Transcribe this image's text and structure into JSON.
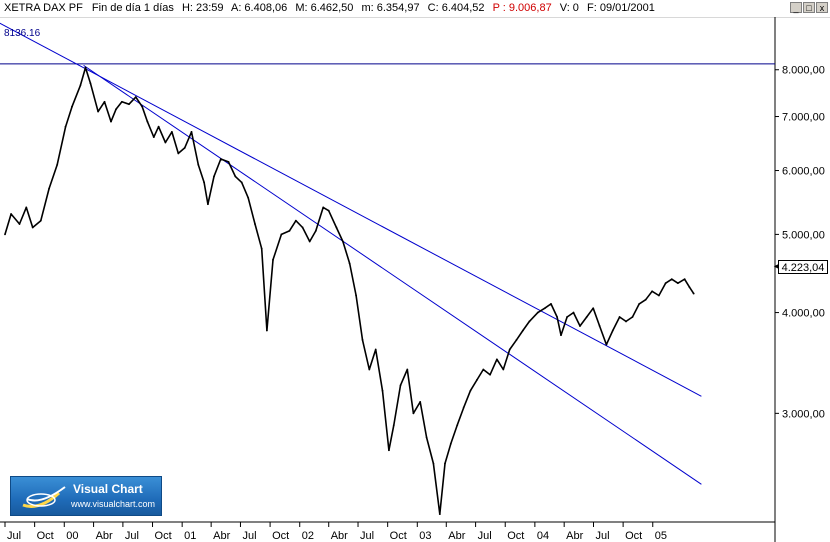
{
  "header": {
    "symbol": "XETRA DAX PF",
    "period": "Fin de día 1 días",
    "hour": "H: 23:59",
    "open": "A: 6.408,06",
    "high": "M: 6.462,50",
    "low": "m: 6.354,97",
    "close": "C: 6.404,52",
    "previous": "P : 9.006,87",
    "volume": "V: 0",
    "date": "F: 09/01/2001"
  },
  "window_controls": [
    "_",
    "□",
    "x"
  ],
  "logo": {
    "name": "Visual Chart",
    "url": "www.visualchart.com"
  },
  "price_tag": "4.223,04",
  "level_line_label": "8136.16",
  "colors": {
    "price": "#000000",
    "trendline": "#0000cd",
    "level_line": "#00008b",
    "background": "#ffffff",
    "header_red": "#d00000"
  },
  "chart_data": {
    "type": "line",
    "title": "XETRA DAX PF",
    "y_scale": "log",
    "ylim": [
      2200,
      9300
    ],
    "y_ticks": [
      "8.000,00",
      "7.000,00",
      "6.000,00",
      "5.000,00",
      "4.000,00",
      "3.000,00"
    ],
    "y_tick_values": [
      8000,
      7000,
      6000,
      5000,
      4000,
      3000
    ],
    "x_range": [
      "1999-07-01",
      "2005-12-31"
    ],
    "x_ticks": [
      {
        "label": "Jul",
        "date": "1999-07-01"
      },
      {
        "label": "Oct",
        "date": "1999-10-01"
      },
      {
        "label": "00",
        "date": "2000-01-01"
      },
      {
        "label": "Abr",
        "date": "2000-04-01"
      },
      {
        "label": "Jul",
        "date": "2000-07-01"
      },
      {
        "label": "Oct",
        "date": "2000-10-01"
      },
      {
        "label": "01",
        "date": "2001-01-01"
      },
      {
        "label": "Abr",
        "date": "2001-04-01"
      },
      {
        "label": "Jul",
        "date": "2001-07-01"
      },
      {
        "label": "Oct",
        "date": "2001-10-01"
      },
      {
        "label": "02",
        "date": "2002-01-01"
      },
      {
        "label": "Abr",
        "date": "2002-04-01"
      },
      {
        "label": "Jul",
        "date": "2002-07-01"
      },
      {
        "label": "Oct",
        "date": "2002-10-01"
      },
      {
        "label": "03",
        "date": "2003-01-01"
      },
      {
        "label": "Abr",
        "date": "2003-04-01"
      },
      {
        "label": "Jul",
        "date": "2003-07-01"
      },
      {
        "label": "Oct",
        "date": "2003-10-01"
      },
      {
        "label": "04",
        "date": "2004-01-01"
      },
      {
        "label": "Abr",
        "date": "2004-04-01"
      },
      {
        "label": "Jul",
        "date": "2004-07-01"
      },
      {
        "label": "Oct",
        "date": "2004-10-01"
      },
      {
        "label": "05",
        "date": "2005-01-01"
      }
    ],
    "series": [
      {
        "values": [
          [
            "1999-07-01",
            5000
          ],
          [
            "1999-07-20",
            5300
          ],
          [
            "1999-08-15",
            5150
          ],
          [
            "1999-09-05",
            5400
          ],
          [
            "1999-09-25",
            5100
          ],
          [
            "1999-10-20",
            5200
          ],
          [
            "1999-11-15",
            5700
          ],
          [
            "1999-12-10",
            6100
          ],
          [
            "2000-01-05",
            6800
          ],
          [
            "2000-01-25",
            7200
          ],
          [
            "2000-02-20",
            7650
          ],
          [
            "2000-03-07",
            8050
          ],
          [
            "2000-03-22",
            7700
          ],
          [
            "2000-04-15",
            7100
          ],
          [
            "2000-05-05",
            7300
          ],
          [
            "2000-05-25",
            6900
          ],
          [
            "2000-06-10",
            7150
          ],
          [
            "2000-06-28",
            7300
          ],
          [
            "2000-07-20",
            7250
          ],
          [
            "2000-08-10",
            7400
          ],
          [
            "2000-08-30",
            7200
          ],
          [
            "2000-09-15",
            6900
          ],
          [
            "2000-10-05",
            6600
          ],
          [
            "2000-10-20",
            6800
          ],
          [
            "2000-11-10",
            6500
          ],
          [
            "2000-11-30",
            6700
          ],
          [
            "2000-12-20",
            6300
          ],
          [
            "2001-01-09",
            6400
          ],
          [
            "2001-01-30",
            6700
          ],
          [
            "2001-02-20",
            6100
          ],
          [
            "2001-03-10",
            5800
          ],
          [
            "2001-03-22",
            5450
          ],
          [
            "2001-04-10",
            5900
          ],
          [
            "2001-05-01",
            6200
          ],
          [
            "2001-05-25",
            6150
          ],
          [
            "2001-06-15",
            5900
          ],
          [
            "2001-07-05",
            5800
          ],
          [
            "2001-07-25",
            5550
          ],
          [
            "2001-08-15",
            5150
          ],
          [
            "2001-09-05",
            4800
          ],
          [
            "2001-09-21",
            3800
          ],
          [
            "2001-10-10",
            4650
          ],
          [
            "2001-11-05",
            5000
          ],
          [
            "2001-11-30",
            5050
          ],
          [
            "2001-12-20",
            5200
          ],
          [
            "2002-01-10",
            5100
          ],
          [
            "2002-02-01",
            4900
          ],
          [
            "2002-02-20",
            5050
          ],
          [
            "2002-03-15",
            5400
          ],
          [
            "2002-04-01",
            5350
          ],
          [
            "2002-04-25",
            5100
          ],
          [
            "2002-05-15",
            4900
          ],
          [
            "2002-06-05",
            4600
          ],
          [
            "2002-06-25",
            4200
          ],
          [
            "2002-07-15",
            3700
          ],
          [
            "2002-08-05",
            3400
          ],
          [
            "2002-08-25",
            3600
          ],
          [
            "2002-09-15",
            3200
          ],
          [
            "2002-10-05",
            2700
          ],
          [
            "2002-10-20",
            2900
          ],
          [
            "2002-11-10",
            3250
          ],
          [
            "2002-12-01",
            3400
          ],
          [
            "2002-12-20",
            3000
          ],
          [
            "2003-01-10",
            3100
          ],
          [
            "2003-01-30",
            2800
          ],
          [
            "2003-02-20",
            2600
          ],
          [
            "2003-03-12",
            2250
          ],
          [
            "2003-03-28",
            2600
          ],
          [
            "2003-04-15",
            2750
          ],
          [
            "2003-05-05",
            2900
          ],
          [
            "2003-05-25",
            3050
          ],
          [
            "2003-06-15",
            3200
          ],
          [
            "2003-07-05",
            3300
          ],
          [
            "2003-07-25",
            3400
          ],
          [
            "2003-08-15",
            3350
          ],
          [
            "2003-09-05",
            3500
          ],
          [
            "2003-09-25",
            3400
          ],
          [
            "2003-10-15",
            3600
          ],
          [
            "2003-11-05",
            3700
          ],
          [
            "2003-11-25",
            3800
          ],
          [
            "2003-12-15",
            3900
          ],
          [
            "2004-01-10",
            4000
          ],
          [
            "2004-02-01",
            4050
          ],
          [
            "2004-02-20",
            4100
          ],
          [
            "2004-03-10",
            3950
          ],
          [
            "2004-03-22",
            3750
          ],
          [
            "2004-04-10",
            3950
          ],
          [
            "2004-04-30",
            4000
          ],
          [
            "2004-05-20",
            3850
          ],
          [
            "2004-06-10",
            3950
          ],
          [
            "2004-06-30",
            4050
          ],
          [
            "2004-07-20",
            3850
          ],
          [
            "2004-08-10",
            3650
          ],
          [
            "2004-08-30",
            3800
          ],
          [
            "2004-09-20",
            3950
          ],
          [
            "2004-10-10",
            3900
          ],
          [
            "2004-10-30",
            3950
          ],
          [
            "2004-11-20",
            4100
          ],
          [
            "2004-12-10",
            4150
          ],
          [
            "2004-12-30",
            4250
          ],
          [
            "2005-01-20",
            4200
          ],
          [
            "2005-02-10",
            4350
          ],
          [
            "2005-03-01",
            4400
          ],
          [
            "2005-03-20",
            4350
          ],
          [
            "2005-04-10",
            4400
          ],
          [
            "2005-04-25",
            4300
          ],
          [
            "2005-05-08",
            4223
          ]
        ]
      }
    ],
    "horizontal_lines": [
      {
        "value": 8136.16
      }
    ],
    "trendlines": [
      {
        "start": [
          "1999-06-01",
          9200
        ],
        "end": [
          "2005-06-01",
          3150
        ]
      },
      {
        "start": [
          "2000-03-01",
          8100
        ],
        "end": [
          "2005-06-01",
          2450
        ]
      }
    ],
    "last_value": "4.223,04",
    "grid": false,
    "legend": "none"
  }
}
